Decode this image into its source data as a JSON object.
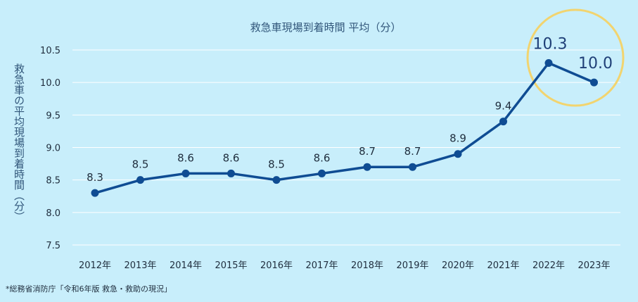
{
  "chart_data": {
    "type": "line",
    "title": "救急車現場到着時間 平均（分）",
    "ylabel": "救急車の平均現場到着時間（分）",
    "xlabel": "",
    "categories": [
      "2012年",
      "2013年",
      "2014年",
      "2015年",
      "2016年",
      "2017年",
      "2018年",
      "2019年",
      "2020年",
      "2021年",
      "2022年",
      "2023年"
    ],
    "series": [
      {
        "values": [
          8.3,
          8.5,
          8.6,
          8.6,
          8.5,
          8.6,
          8.7,
          8.7,
          8.9,
          9.4,
          10.3,
          10.0
        ],
        "labels": [
          "8.3",
          "8.5",
          "8.6",
          "8.6",
          "8.5",
          "8.6",
          "8.7",
          "8.7",
          "8.9",
          "9.4",
          "10.3",
          "10.0"
        ]
      }
    ],
    "ylim": [
      7.5,
      10.5
    ],
    "yticks": [
      "7.5",
      "8.0",
      "8.5",
      "9.0",
      "9.5",
      "10.0",
      "10.5"
    ],
    "grid": true,
    "highlighted_categories": [
      "2022年",
      "2023年"
    ],
    "colors": {
      "line": "#0f4c93",
      "highlight": "#f2d46f",
      "background": "#c8eefb"
    }
  },
  "source": "*総務省消防庁「令和6年版 救急・救助の現況」"
}
